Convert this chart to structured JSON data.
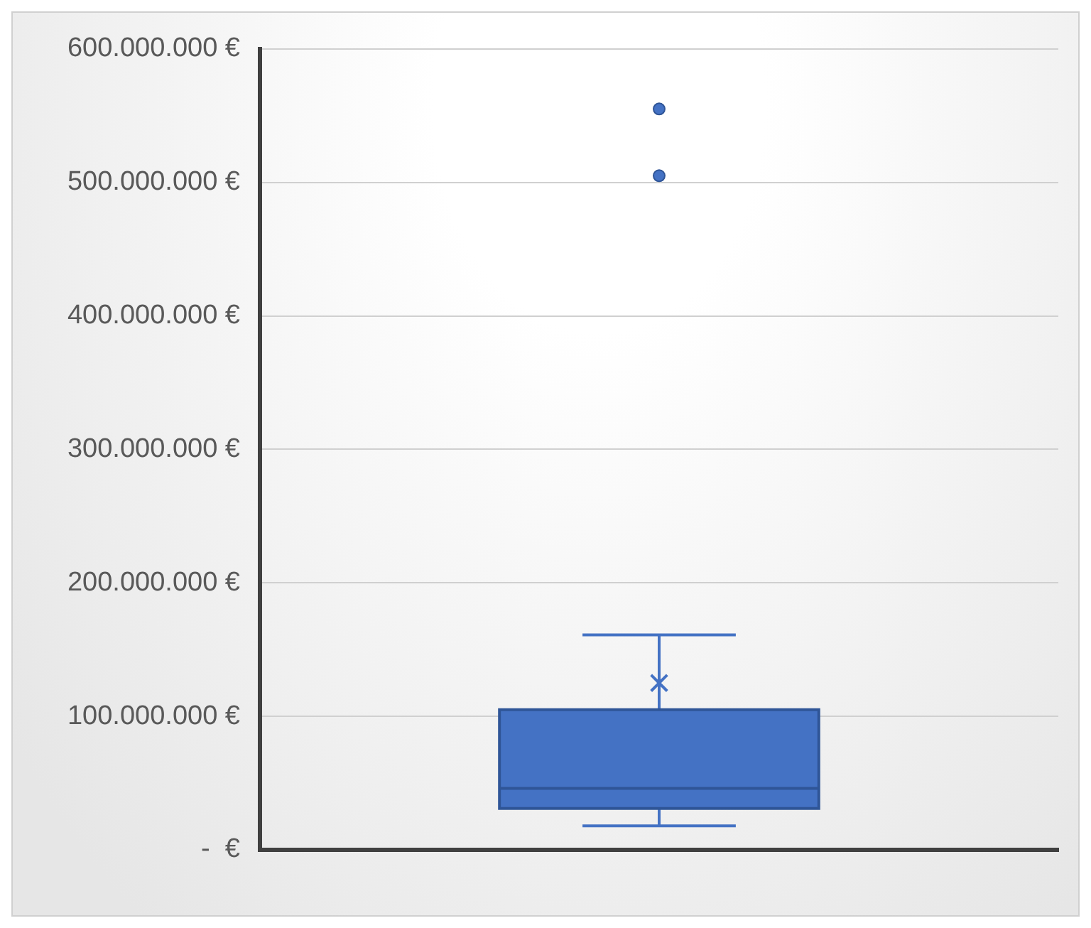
{
  "chart_data": {
    "type": "box",
    "categories": [
      null
    ],
    "color": "#4472c4",
    "boxes": [
      {
        "low": 18000000,
        "q1": 31000000,
        "median": 46000000,
        "q3": 105000000,
        "high": 161000000,
        "mean": 125000000,
        "outliers": [
          555000000,
          505000000
        ]
      }
    ],
    "ylim": [
      0,
      600000000
    ],
    "yticks": [
      {
        "value": 0,
        "label": "-  €"
      },
      {
        "value": 100000000,
        "label": "100.000.000 €"
      },
      {
        "value": 200000000,
        "label": "200.000.000 €"
      },
      {
        "value": 300000000,
        "label": "300.000.000 €"
      },
      {
        "value": 400000000,
        "label": "400.000.000 €"
      },
      {
        "value": 500000000,
        "label": "500.000.000 €"
      },
      {
        "value": 600000000,
        "label": "600.000.000 €"
      }
    ],
    "grid": "y",
    "legend": false
  }
}
